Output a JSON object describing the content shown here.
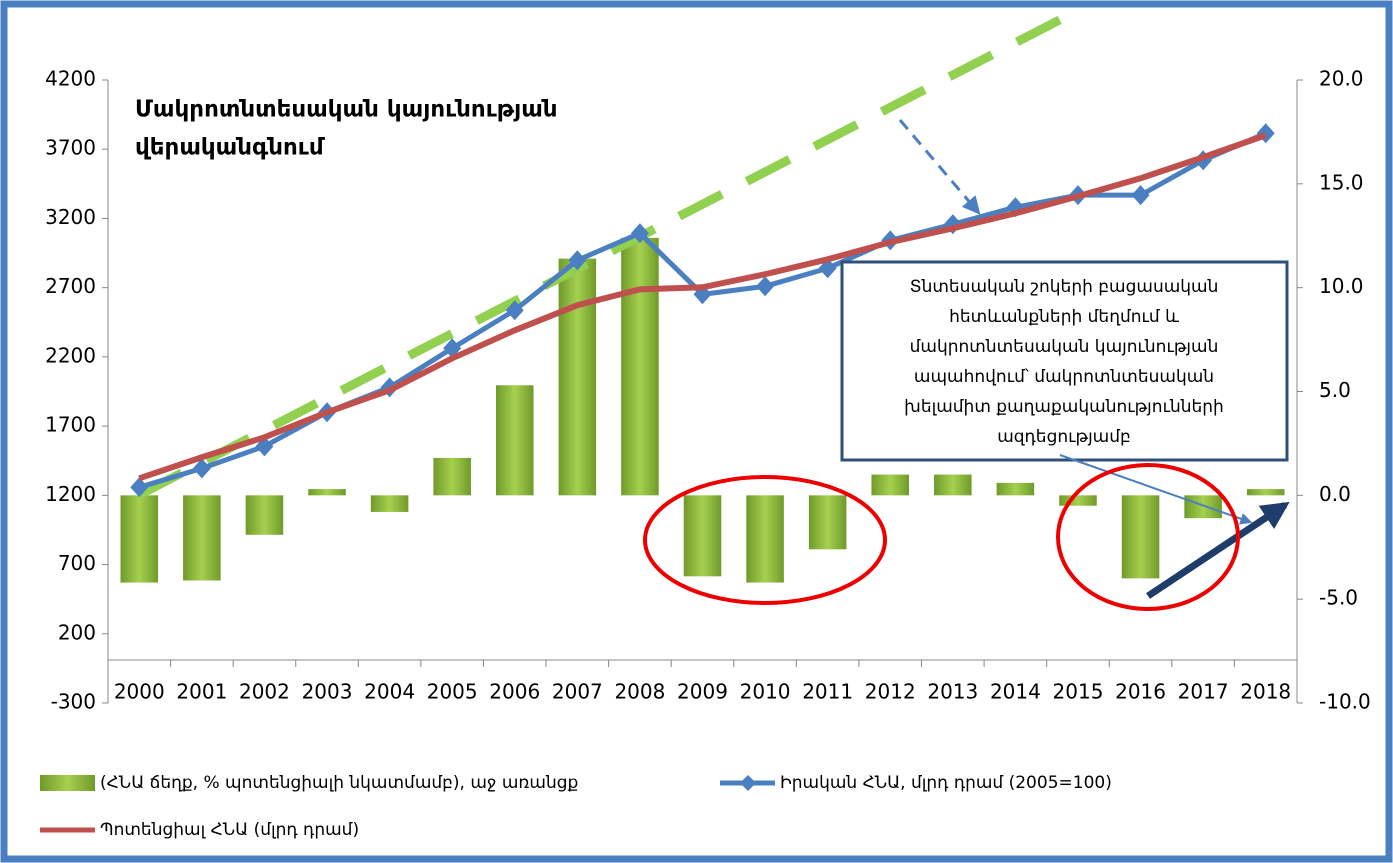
{
  "chart_data": {
    "type": "bar-line",
    "title": [
      "Մակրոտնտեսական կայունության",
      "վերականգնում"
    ],
    "annotation": [
      "Տնտեսական շոկերի բացասական",
      "հետևանքների մեղմում և",
      "մակրոտնտեսական կայունության",
      "ապահովում՝ մակրոտնտեսական",
      "խելամիտ քաղաքականությունների",
      "ազդեցությամբ"
    ],
    "categories": [
      "2000",
      "2001",
      "2002",
      "2003",
      "2004",
      "2005",
      "2006",
      "2007",
      "2008",
      "2009",
      "2010",
      "2011",
      "2012",
      "2013",
      "2014",
      "2015",
      "2016",
      "2017",
      "2018"
    ],
    "series": [
      {
        "name": "(ՀՆԱ ճեղք, % պոտենցիալի նկատմամբ), աջ առանցք",
        "type": "bar",
        "axis": "y2",
        "color": "#8dbb3a",
        "values": [
          -4.2,
          -4.1,
          -1.9,
          0.3,
          -0.8,
          1.8,
          5.3,
          11.4,
          12.4,
          -3.9,
          -4.2,
          -2.6,
          1.0,
          1.0,
          0.6,
          -0.5,
          -4.0,
          -1.1,
          0.3
        ]
      },
      {
        "name": "Իրական ՀՆԱ, մլրդ դրամ (2005=100)",
        "type": "line",
        "marker": "diamond",
        "color": "#4a7fc1",
        "values": [
          1258,
          1395,
          1554,
          1800,
          1980,
          2262,
          2537,
          2898,
          3093,
          2652,
          2710,
          2840,
          3042,
          3158,
          3281,
          3368,
          3368,
          3620,
          3815
        ]
      },
      {
        "name": "Պոտենցիալ ՀՆԱ (մլրդ դրամ)",
        "type": "line",
        "color": "#c0504d",
        "values": [
          1323,
          1475,
          1619,
          1800,
          1959,
          2190,
          2392,
          2573,
          2688,
          2703,
          2797,
          2905,
          3028,
          3129,
          3237,
          3360,
          3490,
          3642,
          3801
        ]
      }
    ],
    "ylim": [
      -300,
      4200
    ],
    "yticks": [
      -300,
      200,
      700,
      1200,
      1700,
      2200,
      2700,
      3200,
      3700,
      4200
    ],
    "y2lim": [
      -10,
      20
    ],
    "y2ticks": [
      {
        "value": -10,
        "label": "-10.0"
      },
      {
        "value": -5,
        "label": "-5.0"
      },
      {
        "value": 0,
        "label": "0.0"
      },
      {
        "value": 5,
        "label": "5.0"
      },
      {
        "value": 10,
        "label": "10.0"
      },
      {
        "value": 15,
        "label": "15.0"
      },
      {
        "value": 20,
        "label": "20.0"
      }
    ]
  }
}
